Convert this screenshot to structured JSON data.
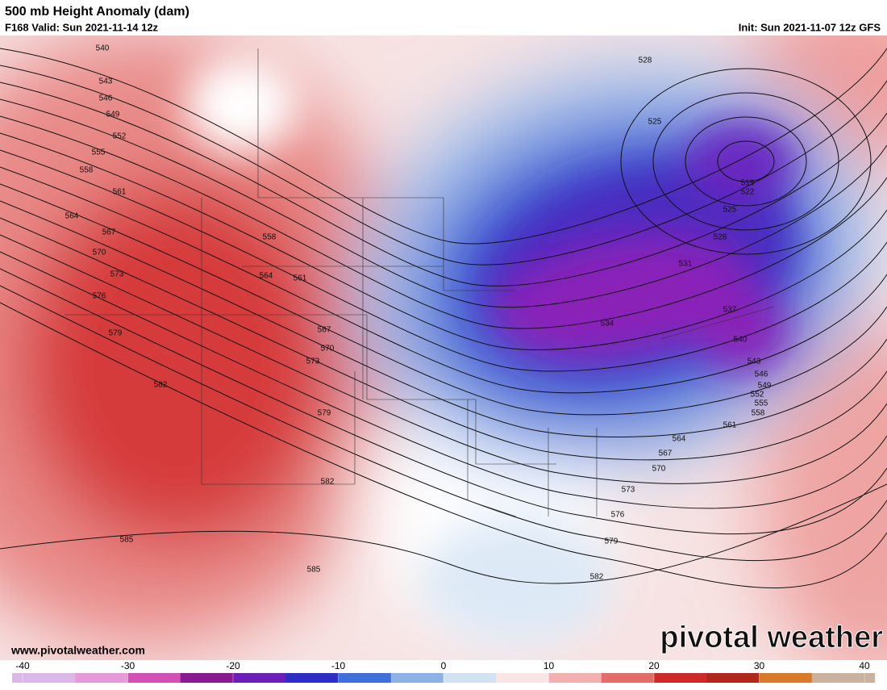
{
  "header": {
    "title": "500 mb Height Anomaly (dam)",
    "valid": "F168 Valid: Sun 2021-11-14 12z",
    "init": "Init: Sun 2021-11-07 12z GFS"
  },
  "map": {
    "contour_labels": [
      540,
      543,
      546,
      549,
      552,
      555,
      558,
      561,
      564,
      567,
      570,
      573,
      576,
      579,
      582,
      585,
      558,
      564,
      561,
      567,
      570,
      573,
      579,
      582,
      585,
      528,
      525,
      519,
      522,
      525,
      528,
      531,
      537,
      534,
      540,
      543,
      546,
      549,
      552,
      555,
      558,
      561,
      564,
      567,
      570,
      573,
      576,
      579,
      582
    ]
  },
  "watermark": "pivotal weather",
  "url": "www.pivotalweather.com",
  "colorbar": {
    "range": [
      -40,
      40
    ],
    "ticks": [
      -40,
      -30,
      -20,
      -10,
      0,
      10,
      20,
      30,
      40
    ],
    "colors": [
      "#d9b8e8",
      "#e79ad9",
      "#d24fb5",
      "#8a1a8f",
      "#6c1fb8",
      "#2f2fc8",
      "#3f6fd8",
      "#8fb2e6",
      "#d3e2f3",
      "#fbe6e6",
      "#f2b1ae",
      "#e36b68",
      "#cf2a2a",
      "#b0281a",
      "#d87a2a",
      "#c9b3a0"
    ]
  }
}
